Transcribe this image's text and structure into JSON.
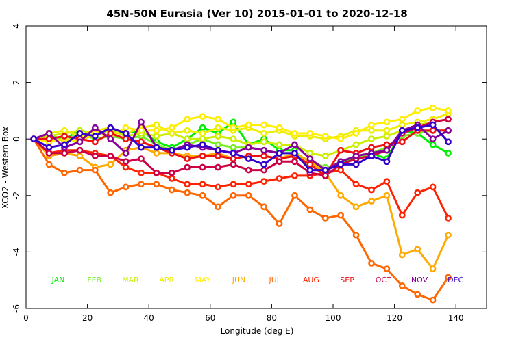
{
  "chart_data": {
    "type": "line",
    "title": "45N-50N Eurasia (Ver 10)   2015-01-01 to 2020-12-18",
    "xlabel": "Longitude (deg E)",
    "ylabel": "XCO2 - Western Box",
    "xlim": [
      0,
      150
    ],
    "ylim": [
      -6,
      4
    ],
    "xticks": [
      0,
      20,
      40,
      60,
      80,
      100,
      120,
      140
    ],
    "yticks": [
      -6,
      -4,
      -2,
      0,
      2,
      4
    ],
    "x": [
      2.5,
      7.5,
      12.5,
      17.5,
      22.5,
      27.5,
      32.5,
      37.5,
      42.5,
      47.5,
      52.5,
      57.5,
      62.5,
      67.5,
      72.5,
      77.5,
      82.5,
      87.5,
      92.5,
      97.5,
      102.5,
      107.5,
      112.5,
      117.5,
      122.5,
      127.5,
      132.5,
      137.5
    ],
    "series": [
      {
        "name": "JAN",
        "color": "#00ee00",
        "values": [
          0,
          0.1,
          0,
          0.3,
          0.2,
          0.3,
          0.2,
          0.3,
          -0.1,
          -0.3,
          0,
          0.4,
          0.2,
          0.6,
          -0.2,
          0,
          -0.4,
          -0.4,
          -1.1,
          -1.1,
          -0.8,
          -0.7,
          -0.5,
          -0.7,
          0.3,
          0.2,
          -0.2,
          -0.5
        ]
      },
      {
        "name": "FEB",
        "color": "#77ee22",
        "values": [
          0,
          0.2,
          -0.1,
          0.2,
          0,
          0.1,
          0,
          0.1,
          -0.2,
          -0.4,
          -0.2,
          0,
          -0.2,
          -0.3,
          -0.3,
          -0.4,
          -0.5,
          -0.5,
          -0.8,
          -1,
          -0.9,
          -0.7,
          -0.5,
          -0.3,
          0.1,
          0.2,
          0.3,
          0.3
        ]
      },
      {
        "name": "MAR",
        "color": "#ccee00",
        "values": [
          0,
          0.1,
          0.2,
          0.3,
          0.2,
          0.3,
          0.1,
          0.2,
          0.1,
          0.2,
          0,
          0,
          0.1,
          0,
          -0.2,
          -0.1,
          -0.2,
          -0.2,
          -0.5,
          -0.6,
          -0.4,
          -0.2,
          0,
          0.1,
          0.3,
          0.5,
          0.6,
          0.7
        ]
      },
      {
        "name": "APR",
        "color": "#eeee00",
        "values": [
          0,
          0.2,
          0.3,
          0.1,
          0.3,
          0.4,
          0.2,
          0.4,
          0.5,
          0.2,
          0.3,
          0.2,
          0.4,
          0.3,
          0.4,
          0.2,
          0.3,
          0.1,
          0.1,
          0,
          0.1,
          0.3,
          0.3,
          0.3,
          0.5,
          0.6,
          0.7,
          0.9
        ]
      },
      {
        "name": "MAY",
        "color": "#ffee00",
        "values": [
          0,
          -0.1,
          0,
          -0.1,
          0.2,
          0.1,
          0.4,
          0.3,
          0.3,
          0.4,
          0.7,
          0.8,
          0.7,
          0.4,
          0.5,
          0.5,
          0.4,
          0.2,
          0.2,
          0.1,
          0,
          0.2,
          0.5,
          0.6,
          0.7,
          1,
          1.1,
          1
        ]
      },
      {
        "name": "JUN",
        "color": "#ffaa00",
        "values": [
          0,
          -0.6,
          -0.5,
          -0.6,
          -1,
          -0.9,
          -0.4,
          -0.3,
          -0.5,
          -0.5,
          -0.6,
          -0.6,
          -0.5,
          -0.7,
          -0.6,
          -0.6,
          -0.7,
          -0.5,
          -0.8,
          -1.2,
          -2,
          -2.4,
          -2.2,
          -2,
          -4.1,
          -3.9,
          -4.6,
          -3.4
        ]
      },
      {
        "name": "JUL",
        "color": "#ff6600",
        "values": [
          0,
          -0.9,
          -1.2,
          -1.1,
          -1.1,
          -1.9,
          -1.7,
          -1.6,
          -1.6,
          -1.8,
          -1.9,
          -2,
          -2.4,
          -2,
          -2,
          -2.4,
          -3,
          -2,
          -2.5,
          -2.8,
          -2.7,
          -3.4,
          -4.4,
          -4.6,
          -5.2,
          -5.5,
          -5.7,
          -4.9
        ]
      },
      {
        "name": "AUG",
        "color": "#ff2200",
        "values": [
          0,
          -0.5,
          -0.4,
          -0.4,
          -0.5,
          -0.6,
          -1,
          -1.2,
          -1.2,
          -1.4,
          -1.6,
          -1.6,
          -1.7,
          -1.6,
          -1.6,
          -1.5,
          -1.4,
          -1.3,
          -1.3,
          -1.2,
          -1.1,
          -1.6,
          -1.8,
          -1.5,
          -2.7,
          -1.9,
          -1.7,
          -2.8
        ]
      },
      {
        "name": "SEP",
        "color": "#ee1111",
        "values": [
          0,
          0,
          0.1,
          0,
          -0.1,
          0.2,
          0,
          -0.1,
          -0.3,
          -0.5,
          -0.7,
          -0.6,
          -0.6,
          -0.7,
          -0.6,
          -0.6,
          -0.7,
          -0.6,
          -0.9,
          -1.3,
          -0.4,
          -0.5,
          -0.3,
          -0.2,
          -0.1,
          0.3,
          0.3,
          0.3
        ]
      },
      {
        "name": "OCT",
        "color": "#cc0044",
        "values": [
          0,
          -0.5,
          -0.5,
          -0.4,
          -0.6,
          -0.6,
          -0.8,
          -0.7,
          -1.2,
          -1.2,
          -1,
          -1,
          -1,
          -0.9,
          -1.1,
          -1.1,
          -0.8,
          -0.8,
          -1.2,
          -1.3,
          -0.9,
          -0.7,
          -0.6,
          -0.4,
          0.2,
          0.4,
          0.6,
          0.7
        ]
      },
      {
        "name": "NOV",
        "color": "#880099",
        "values": [
          0,
          0.2,
          -0.3,
          -0.1,
          0.4,
          0,
          -0.5,
          0.6,
          -0.3,
          -0.4,
          -0.2,
          -0.3,
          -0.4,
          -0.5,
          -0.3,
          -0.4,
          -0.5,
          -0.2,
          -0.7,
          -1.1,
          -0.8,
          -0.6,
          -0.5,
          -0.4,
          0.3,
          0.5,
          0,
          0.3
        ]
      },
      {
        "name": "DEC",
        "color": "#3300cc",
        "values": [
          0,
          -0.3,
          -0.2,
          0.2,
          0.1,
          0.4,
          0.2,
          -0.3,
          -0.3,
          -0.4,
          -0.3,
          -0.2,
          -0.4,
          -0.5,
          -0.7,
          -0.9,
          -0.5,
          -0.5,
          -1.1,
          -1.1,
          -0.9,
          -0.9,
          -0.6,
          -0.8,
          0.3,
          0.4,
          0.5,
          -0.1
        ]
      }
    ],
    "legend_position": "bottom-inside",
    "grid": false
  }
}
